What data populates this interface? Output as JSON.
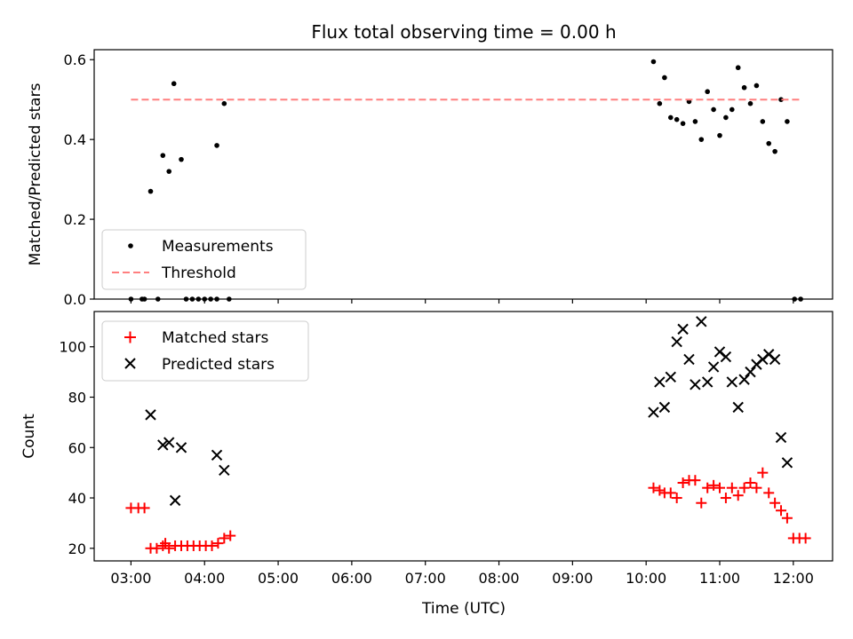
{
  "title": "Flux total observing time = 0.00 h",
  "xlabel": "Time (UTC)",
  "x_ticks": [
    "03:00",
    "04:00",
    "05:00",
    "06:00",
    "07:00",
    "08:00",
    "09:00",
    "10:00",
    "11:00",
    "12:00"
  ],
  "chart_data": [
    {
      "type": "scatter",
      "panel": "top",
      "ylabel": "Matched/Predicted stars",
      "xlim": [
        "02:30",
        "12:32"
      ],
      "ylim": [
        0,
        0.625
      ],
      "y_ticks": [
        0.0,
        0.2,
        0.4,
        0.6
      ],
      "legend_position": "lower-left",
      "colors": {
        "measurements": "#000000",
        "threshold": "#ff7f7f"
      },
      "series": [
        {
          "name": "Measurements",
          "marker": "dot",
          "points": [
            [
              "03:00",
              0
            ],
            [
              "03:09",
              0
            ],
            [
              "03:11",
              0
            ],
            [
              "03:22",
              0
            ],
            [
              "03:45",
              0
            ],
            [
              "03:50",
              0
            ],
            [
              "03:55",
              0
            ],
            [
              "04:00",
              0
            ],
            [
              "04:05",
              0
            ],
            [
              "04:10",
              0
            ],
            [
              "04:20",
              0
            ],
            [
              "03:16",
              0.27
            ],
            [
              "03:26",
              0.36
            ],
            [
              "03:31",
              0.32
            ],
            [
              "03:35",
              0.54
            ],
            [
              "03:41",
              0.35
            ],
            [
              "04:10",
              0.385
            ],
            [
              "04:16",
              0.49
            ],
            [
              "10:06",
              0.595
            ],
            [
              "10:11",
              0.49
            ],
            [
              "10:15",
              0.555
            ],
            [
              "10:20",
              0.455
            ],
            [
              "10:25",
              0.45
            ],
            [
              "10:30",
              0.44
            ],
            [
              "10:35",
              0.495
            ],
            [
              "10:40",
              0.445
            ],
            [
              "10:45",
              0.4
            ],
            [
              "10:50",
              0.52
            ],
            [
              "10:55",
              0.475
            ],
            [
              "11:00",
              0.41
            ],
            [
              "11:05",
              0.455
            ],
            [
              "11:10",
              0.475
            ],
            [
              "11:15",
              0.58
            ],
            [
              "11:20",
              0.53
            ],
            [
              "11:25",
              0.49
            ],
            [
              "11:30",
              0.535
            ],
            [
              "11:35",
              0.445
            ],
            [
              "11:40",
              0.39
            ],
            [
              "11:45",
              0.37
            ],
            [
              "11:50",
              0.5
            ],
            [
              "11:55",
              0.445
            ],
            [
              "12:01",
              0
            ],
            [
              "12:06",
              0
            ]
          ]
        },
        {
          "name": "Threshold",
          "marker": "dashed-line",
          "points": [
            [
              "03:00",
              0.5
            ],
            [
              "12:06",
              0.5
            ]
          ]
        }
      ]
    },
    {
      "type": "scatter",
      "panel": "bottom",
      "ylabel": "Count",
      "xlabel": "Time (UTC)",
      "xlim": [
        "02:30",
        "12:32"
      ],
      "ylim": [
        15,
        114
      ],
      "y_ticks": [
        20,
        40,
        60,
        80,
        100
      ],
      "legend_position": "upper-left",
      "colors": {
        "matched": "#ff0000",
        "predicted": "#000000"
      },
      "series": [
        {
          "name": "Matched stars",
          "marker": "plus",
          "points": [
            [
              "03:00",
              36
            ],
            [
              "03:06",
              36
            ],
            [
              "03:11",
              36
            ],
            [
              "03:16",
              20
            ],
            [
              "03:21",
              20
            ],
            [
              "03:26",
              21
            ],
            [
              "03:28",
              22
            ],
            [
              "03:31",
              20
            ],
            [
              "03:36",
              21
            ],
            [
              "03:41",
              21
            ],
            [
              "03:46",
              21
            ],
            [
              "03:51",
              21
            ],
            [
              "03:56",
              21
            ],
            [
              "04:01",
              21
            ],
            [
              "04:06",
              21
            ],
            [
              "04:11",
              22
            ],
            [
              "04:16",
              24
            ],
            [
              "04:21",
              25
            ],
            [
              "10:06",
              44
            ],
            [
              "10:11",
              43
            ],
            [
              "10:15",
              42
            ],
            [
              "10:20",
              42
            ],
            [
              "10:25",
              40
            ],
            [
              "10:30",
              46
            ],
            [
              "10:35",
              47
            ],
            [
              "10:40",
              47
            ],
            [
              "10:45",
              38
            ],
            [
              "10:50",
              44
            ],
            [
              "10:55",
              45
            ],
            [
              "11:00",
              44
            ],
            [
              "11:05",
              40
            ],
            [
              "11:10",
              44
            ],
            [
              "11:15",
              41
            ],
            [
              "11:20",
              44
            ],
            [
              "11:25",
              46
            ],
            [
              "11:30",
              44
            ],
            [
              "11:35",
              50
            ],
            [
              "11:40",
              42
            ],
            [
              "11:45",
              38
            ],
            [
              "11:50",
              35
            ],
            [
              "11:55",
              32
            ],
            [
              "12:00",
              24
            ],
            [
              "12:05",
              24
            ],
            [
              "12:10",
              24
            ]
          ]
        },
        {
          "name": "Predicted stars",
          "marker": "x",
          "points": [
            [
              "03:16",
              73
            ],
            [
              "03:26",
              61
            ],
            [
              "03:31",
              62
            ],
            [
              "03:36",
              39
            ],
            [
              "03:41",
              60
            ],
            [
              "04:10",
              57
            ],
            [
              "04:16",
              51
            ],
            [
              "10:06",
              74
            ],
            [
              "10:11",
              86
            ],
            [
              "10:15",
              76
            ],
            [
              "10:20",
              88
            ],
            [
              "10:25",
              102
            ],
            [
              "10:30",
              107
            ],
            [
              "10:35",
              95
            ],
            [
              "10:40",
              85
            ],
            [
              "10:45",
              110
            ],
            [
              "10:50",
              86
            ],
            [
              "10:55",
              92
            ],
            [
              "11:00",
              98
            ],
            [
              "11:05",
              96
            ],
            [
              "11:10",
              86
            ],
            [
              "11:15",
              76
            ],
            [
              "11:20",
              87
            ],
            [
              "11:25",
              90
            ],
            [
              "11:30",
              93
            ],
            [
              "11:35",
              95
            ],
            [
              "11:40",
              97
            ],
            [
              "11:45",
              95
            ],
            [
              "11:50",
              64
            ],
            [
              "11:55",
              54
            ]
          ]
        }
      ]
    }
  ]
}
